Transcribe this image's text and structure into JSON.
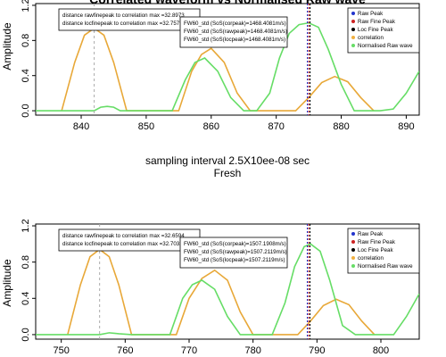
{
  "chart_data": [
    {
      "type": "line",
      "title": "Correlated waveform vs Normalised Raw wave",
      "ylabel": "Amplitude",
      "xlabel_lines": [
        "sampling interval 2.5X10ee-08 sec",
        "Fresh"
      ],
      "xlim": [
        833,
        892
      ],
      "ylim": [
        -0.05,
        1.22
      ],
      "x_ticks": [
        840,
        850,
        860,
        870,
        880,
        890
      ],
      "y_ticks": [
        0.0,
        0.4,
        0.8,
        1.2
      ],
      "y_tick_labels": [
        "0.0",
        "0.4",
        "0.8",
        "1.2"
      ],
      "info_left": [
        "distance rawfinepeak to correlation max =32.8973",
        "distance locfinepeak to correlation max =32.7579"
      ],
      "info_mid": [
        "FW60_std (SoS(corpeak)=1468.4081m/s)",
        "FW60_std (SoS(rawpeak)=1468.4081m/s)",
        "FW60_std (SoS(locpeak)=1468.4081m/s)"
      ],
      "legend": [
        {
          "label": "Raw Peak",
          "color": "#2233cc",
          "kind": "point"
        },
        {
          "label": "Raw Fine Peak",
          "color": "#cc2222",
          "kind": "point"
        },
        {
          "label": "Loc Fine Peak",
          "color": "#000000",
          "kind": "point"
        },
        {
          "label": "correlation",
          "color": "#f0b040",
          "kind": "point"
        },
        {
          "label": "Normalised Raw wave",
          "color": "#66dd66",
          "kind": "point"
        }
      ],
      "peak_lines_x": 875,
      "correlation_max_x": 842,
      "series": [
        {
          "name": "correlation",
          "color": "#e8a838",
          "x": [
            837,
            839,
            840.5,
            842,
            843.5,
            845,
            847,
            855,
            857,
            858.5,
            860,
            862,
            864,
            866,
            873,
            875,
            877,
            879,
            881,
            883,
            885
          ],
          "y": [
            0.0,
            0.55,
            0.86,
            0.94,
            0.86,
            0.55,
            0.0,
            0.0,
            0.45,
            0.64,
            0.71,
            0.55,
            0.2,
            0.0,
            0.0,
            0.15,
            0.32,
            0.39,
            0.33,
            0.15,
            0.0
          ]
        },
        {
          "name": "Normalised Raw wave",
          "color": "#66dd66",
          "x": [
            833,
            838,
            842,
            843,
            844,
            845,
            846,
            847,
            849,
            854,
            856,
            857.5,
            859,
            861,
            863,
            865,
            867,
            869,
            870.5,
            872,
            873.5,
            875,
            876.5,
            878,
            880,
            882,
            886,
            888,
            890,
            892
          ],
          "y": [
            0.0,
            0.0,
            0.0,
            0.04,
            0.05,
            0.04,
            0.0,
            0.0,
            0.0,
            0.0,
            0.35,
            0.55,
            0.6,
            0.45,
            0.15,
            0.0,
            0.0,
            0.2,
            0.6,
            0.88,
            0.98,
            1.0,
            0.95,
            0.7,
            0.3,
            0.0,
            0.0,
            0.02,
            0.2,
            0.45
          ]
        }
      ]
    },
    {
      "type": "line",
      "title": "",
      "ylabel": "Amplitude",
      "xlabel_lines": [],
      "xlim": [
        746,
        806
      ],
      "ylim": [
        -0.05,
        1.22
      ],
      "x_ticks": [
        750,
        760,
        770,
        780,
        790,
        800
      ],
      "y_ticks": [
        0.0,
        0.4,
        0.8,
        1.2
      ],
      "y_tick_labels": [
        "0.0",
        "0.4",
        "0.8",
        "1.2"
      ],
      "info_left": [
        "distance rawfinepeak to correlation max =32.6594",
        "distance locfinepeak to correlation max =32.7032"
      ],
      "info_mid": [
        "FW60_std (SoS(corpeak)=1507.1908m/s)",
        "FW60_std (SoS(rawpeak)=1507.2119m/s)",
        "FW60_std (SoS(locpeak)=1507.2119m/s)"
      ],
      "legend": [
        {
          "label": "Raw Peak",
          "color": "#2233cc",
          "kind": "point"
        },
        {
          "label": "Raw Fine Peak",
          "color": "#cc2222",
          "kind": "point"
        },
        {
          "label": "Loc Fine Peak",
          "color": "#000000",
          "kind": "point"
        },
        {
          "label": "correlation",
          "color": "#f0b040",
          "kind": "point"
        },
        {
          "label": "Normalised Raw wave",
          "color": "#66dd66",
          "kind": "point"
        }
      ],
      "peak_lines_x": 788.7,
      "correlation_max_x": 756,
      "series": [
        {
          "name": "correlation",
          "color": "#e8a838",
          "x": [
            751,
            753,
            754.5,
            756,
            757.5,
            759,
            761,
            768,
            770,
            772,
            774,
            776,
            778,
            780,
            787,
            789,
            791,
            793,
            795,
            797,
            799
          ],
          "y": [
            0.0,
            0.55,
            0.86,
            0.94,
            0.86,
            0.55,
            0.0,
            0.0,
            0.4,
            0.62,
            0.71,
            0.6,
            0.25,
            0.0,
            0.0,
            0.15,
            0.32,
            0.39,
            0.33,
            0.15,
            0.0
          ]
        },
        {
          "name": "Normalised Raw wave",
          "color": "#66dd66",
          "x": [
            746,
            753,
            756,
            757.5,
            759,
            761,
            767,
            769,
            770.5,
            772,
            774,
            776,
            778,
            783,
            785,
            786.5,
            788,
            789,
            790.5,
            792,
            794,
            796,
            802,
            804,
            806
          ],
          "y": [
            0.0,
            0.0,
            0.0,
            0.02,
            0.01,
            0.0,
            0.0,
            0.4,
            0.55,
            0.6,
            0.5,
            0.2,
            0.0,
            0.0,
            0.35,
            0.75,
            0.97,
            1.0,
            0.92,
            0.6,
            0.1,
            0.0,
            0.0,
            0.2,
            0.45
          ]
        }
      ]
    }
  ]
}
